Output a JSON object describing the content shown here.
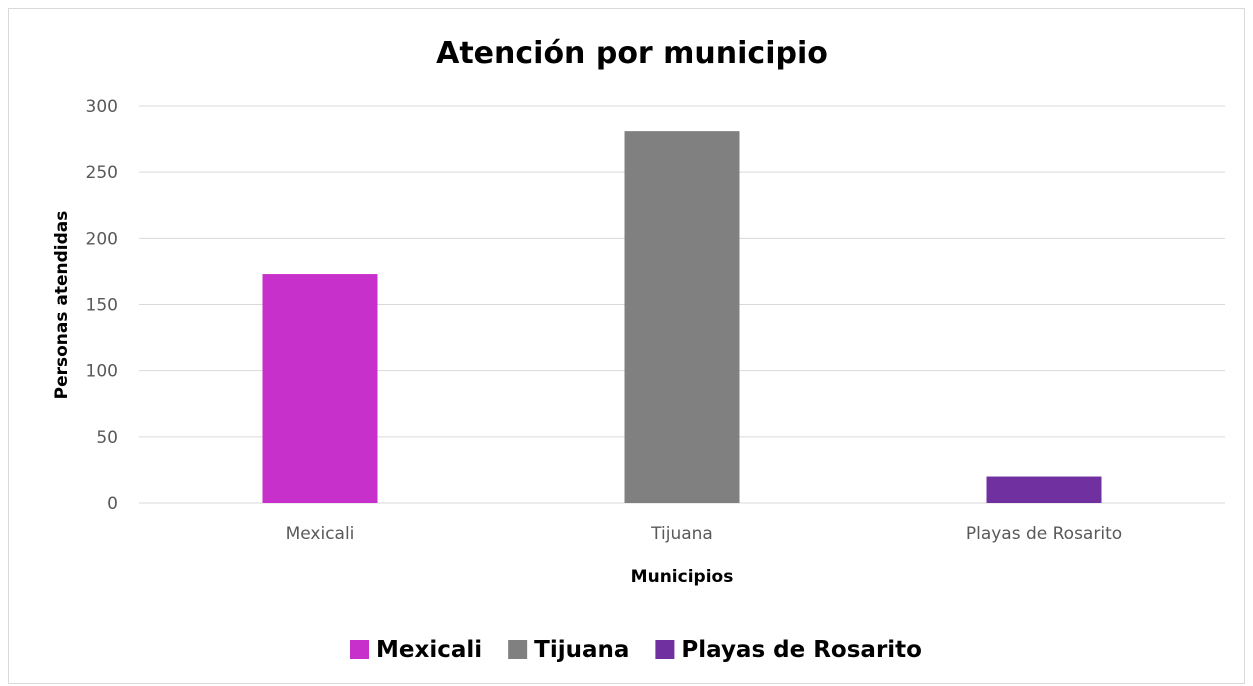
{
  "chart_data": {
    "type": "bar",
    "title": "Atención por municipio",
    "xlabel": "Municipios",
    "ylabel": "Personas atendidas",
    "categories": [
      "Mexicali",
      "Tijuana",
      "Playas de Rosarito"
    ],
    "values": [
      173,
      281,
      20
    ],
    "colors": [
      "#C830CC",
      "#808080",
      "#7030A0"
    ],
    "ylim": [
      0,
      300
    ],
    "yticks": [
      0,
      50,
      100,
      150,
      200,
      250,
      300
    ],
    "ytick_labels": [
      "0",
      "50",
      "100",
      "150",
      "200",
      "250",
      "300"
    ],
    "grid": true,
    "legend": {
      "position": "bottom",
      "entries": [
        "Mexicali",
        "Tijuana",
        "Playas de Rosarito"
      ]
    }
  }
}
